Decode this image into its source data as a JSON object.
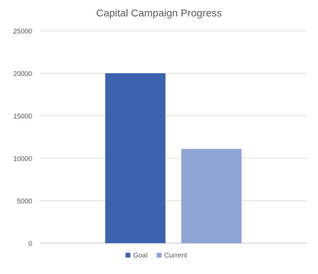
{
  "chart_data": {
    "type": "bar",
    "title": "Capital Campaign Progress",
    "xlabel": "",
    "ylabel": "",
    "series": [
      {
        "name": "Goal",
        "values": [
          20000
        ],
        "color": "#3c63ae"
      },
      {
        "name": "Current",
        "values": [
          11100
        ],
        "color": "#8ea5d5"
      }
    ],
    "ylim": [
      0,
      25000
    ],
    "yticks": [
      "0",
      "5000",
      "10000",
      "15000",
      "20000",
      "25000"
    ],
    "grid": true,
    "legend_position": "bottom"
  }
}
